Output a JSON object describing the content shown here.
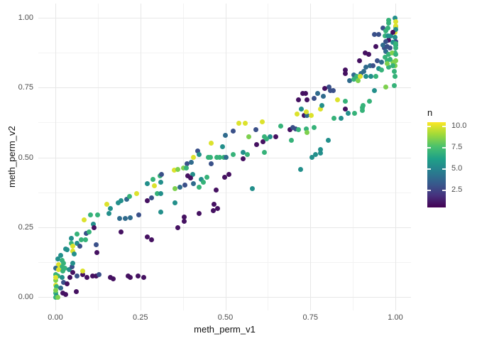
{
  "axes": {
    "x": {
      "title": "meth_perm_v1",
      "ticks": [
        0,
        0.25,
        0.5,
        0.75,
        1
      ],
      "tick_labels": [
        "0.00",
        "0.25",
        "0.50",
        "0.75",
        "1.00"
      ],
      "minor_ticks": [
        0.125,
        0.375,
        0.625,
        0.875
      ],
      "range": [
        0,
        1
      ]
    },
    "y": {
      "title": "meth_perm_v2",
      "ticks": [
        0,
        0.25,
        0.5,
        0.75,
        1
      ],
      "tick_labels": [
        "0.00",
        "0.25",
        "0.50",
        "0.75",
        "1.00"
      ],
      "minor_ticks": [
        0.125,
        0.375,
        0.625,
        0.875
      ],
      "range": [
        0,
        1
      ]
    }
  },
  "legend": {
    "title": "n",
    "ticks": [
      10.0,
      7.5,
      5.0,
      2.5
    ],
    "tick_labels": [
      "10.0",
      "7.5",
      "5.0",
      "2.5"
    ],
    "domain": [
      0.55,
      10.5
    ]
  },
  "colors": {
    "viridis_stops": [
      "#440154",
      "#46327e",
      "#365c8d",
      "#277f8e",
      "#1fa187",
      "#4ac16d",
      "#a0da39",
      "#fde725"
    ],
    "grid_major": "#e7e7e7",
    "grid_minor": "#f3f3f3",
    "tick_text": "#4d4d4d"
  },
  "chart_data": {
    "type": "scatter",
    "title": "",
    "xlabel": "meth_perm_v1",
    "ylabel": "meth_perm_v2",
    "color_variable": "n",
    "color_scale": "viridis",
    "xlim": [
      0,
      1
    ],
    "ylim": [
      0,
      1
    ],
    "grid": true,
    "legend_position": "right",
    "points": [
      [
        0.046,
        0.191,
        7
      ],
      [
        0.063,
        0.193,
        5.5
      ],
      [
        0.071,
        0.181,
        3
      ],
      [
        0.031,
        0.173,
        5.5
      ],
      [
        0.052,
        0.165,
        10
      ],
      [
        0.056,
        0.153,
        5.5
      ],
      [
        0.119,
        0.186,
        3
      ],
      [
        0.123,
        0.16,
        1
      ],
      [
        0.008,
        0.135,
        5.5
      ],
      [
        0.019,
        0.13,
        7
      ],
      [
        0.025,
        0.122,
        7
      ],
      [
        0.01,
        0.115,
        10
      ],
      [
        0.019,
        0.109,
        7
      ],
      [
        0.029,
        0.104,
        7
      ],
      [
        0.0,
        0.102,
        4
      ],
      [
        0.01,
        0.097,
        10
      ],
      [
        0.021,
        0.092,
        7
      ],
      [
        0.04,
        0.097,
        5.5
      ],
      [
        0.05,
        0.109,
        3
      ],
      [
        0.052,
        0.122,
        5.5
      ],
      [
        0.052,
        0.089,
        1
      ],
      [
        0.042,
        0.071,
        1
      ],
      [
        0.0,
        0.079,
        7
      ],
      [
        0.008,
        0.076,
        7
      ],
      [
        0.019,
        0.071,
        5.5
      ],
      [
        0.063,
        0.076,
        3
      ],
      [
        0.081,
        0.079,
        1
      ],
      [
        0.092,
        0.071,
        1
      ],
      [
        0.109,
        0.076,
        1
      ],
      [
        0.119,
        0.076,
        1
      ],
      [
        0.025,
        0.053,
        3
      ],
      [
        0.035,
        0.046,
        1
      ],
      [
        0.0,
        0.041,
        10
      ],
      [
        0.004,
        0.038,
        7
      ],
      [
        0.015,
        0.033,
        4
      ],
      [
        0.061,
        0.02,
        1
      ],
      [
        0.021,
        0.013,
        1
      ],
      [
        0.031,
        0.01,
        1
      ],
      [
        0.0,
        0.015,
        7
      ],
      [
        0.004,
        0.003,
        5.5
      ],
      [
        0.0,
        0.0,
        7
      ],
      [
        0.008,
        0.0,
        8.5
      ],
      [
        0.0,
        0.025,
        8.5
      ],
      [
        0.0,
        0.059,
        8.5
      ],
      [
        0.0,
        0.071,
        10
      ],
      [
        0.161,
        0.071,
        1
      ],
      [
        0.171,
        0.066,
        1
      ],
      [
        0.213,
        0.074,
        1
      ],
      [
        0.221,
        0.071,
        1
      ],
      [
        0.244,
        0.076,
        1
      ],
      [
        0.259,
        0.071,
        1
      ],
      [
        0.129,
        0.079,
        3
      ],
      [
        0.081,
        0.092,
        10
      ],
      [
        0.104,
        0.293,
        7
      ],
      [
        0.125,
        0.295,
        7
      ],
      [
        0.157,
        0.3,
        5.5
      ],
      [
        0.084,
        0.275,
        10
      ],
      [
        0.111,
        0.262,
        5.5
      ],
      [
        0.113,
        0.249,
        1
      ],
      [
        0.188,
        0.28,
        4
      ],
      [
        0.205,
        0.28,
        4
      ],
      [
        0.221,
        0.283,
        4
      ],
      [
        0.246,
        0.293,
        3
      ],
      [
        0.309,
        0.305,
        5.5
      ],
      [
        0.194,
        0.232,
        1
      ],
      [
        0.271,
        0.216,
        1
      ],
      [
        0.282,
        0.204,
        1
      ],
      [
        0.09,
        0.229,
        3
      ],
      [
        0.1,
        0.232,
        7
      ],
      [
        0.063,
        0.224,
        7
      ],
      [
        0.046,
        0.211,
        5.5
      ],
      [
        0.077,
        0.206,
        7
      ],
      [
        0.088,
        0.204,
        7
      ],
      [
        0.052,
        0.181,
        10
      ],
      [
        0.035,
        0.168,
        5.5
      ],
      [
        0.015,
        0.148,
        5.5
      ],
      [
        0.271,
        0.407,
        5.5
      ],
      [
        0.288,
        0.42,
        7
      ],
      [
        0.307,
        0.433,
        7
      ],
      [
        0.313,
        0.44,
        3
      ],
      [
        0.309,
        0.41,
        5.5
      ],
      [
        0.292,
        0.397,
        10
      ],
      [
        0.152,
        0.333,
        10
      ],
      [
        0.184,
        0.338,
        5.5
      ],
      [
        0.194,
        0.346,
        5.5
      ],
      [
        0.209,
        0.351,
        4
      ],
      [
        0.219,
        0.361,
        7
      ],
      [
        0.24,
        0.369,
        10
      ],
      [
        0.271,
        0.346,
        1
      ],
      [
        0.282,
        0.356,
        3
      ],
      [
        0.299,
        0.369,
        7
      ],
      [
        0.309,
        0.369,
        5.5
      ],
      [
        0.161,
        0.316,
        5.5
      ],
      [
        0.539,
        0.623,
        10
      ],
      [
        0.559,
        0.621,
        10
      ],
      [
        0.608,
        0.626,
        10
      ],
      [
        0.524,
        0.593,
        3
      ],
      [
        0.501,
        0.578,
        4
      ],
      [
        0.589,
        0.598,
        3
      ],
      [
        0.662,
        0.611,
        7
      ],
      [
        0.691,
        0.598,
        1
      ],
      [
        0.568,
        0.573,
        8.5
      ],
      [
        0.614,
        0.575,
        7
      ],
      [
        0.631,
        0.573,
        5.5
      ],
      [
        0.649,
        0.573,
        1
      ],
      [
        0.591,
        0.547,
        1
      ],
      [
        0.61,
        0.557,
        1
      ],
      [
        0.622,
        0.565,
        7
      ],
      [
        0.695,
        0.56,
        7
      ],
      [
        0.459,
        0.55,
        10
      ],
      [
        0.491,
        0.537,
        5.5
      ],
      [
        0.418,
        0.524,
        3
      ],
      [
        0.407,
        0.501,
        10
      ],
      [
        0.422,
        0.511,
        5.5
      ],
      [
        0.449,
        0.501,
        7
      ],
      [
        0.457,
        0.501,
        7
      ],
      [
        0.474,
        0.499,
        7
      ],
      [
        0.484,
        0.499,
        7
      ],
      [
        0.495,
        0.499,
        7
      ],
      [
        0.503,
        0.501,
        4
      ],
      [
        0.524,
        0.509,
        7
      ],
      [
        0.553,
        0.517,
        5.5
      ],
      [
        0.564,
        0.511,
        7
      ],
      [
        0.553,
        0.496,
        1
      ],
      [
        0.614,
        0.519,
        7
      ],
      [
        0.388,
        0.478,
        3
      ],
      [
        0.399,
        0.481,
        4
      ],
      [
        0.459,
        0.478,
        3
      ],
      [
        0.349,
        0.455,
        10
      ],
      [
        0.361,
        0.458,
        8.5
      ],
      [
        0.376,
        0.461,
        8.5
      ],
      [
        0.386,
        0.463,
        7
      ],
      [
        0.405,
        0.44,
        5.5
      ],
      [
        0.39,
        0.433,
        1
      ],
      [
        0.397,
        0.427,
        1
      ],
      [
        0.428,
        0.42,
        5.5
      ],
      [
        0.445,
        0.43,
        7
      ],
      [
        0.497,
        0.43,
        1
      ],
      [
        0.511,
        0.438,
        1
      ],
      [
        0.351,
        0.389,
        8.5
      ],
      [
        0.367,
        0.392,
        4
      ],
      [
        0.38,
        0.402,
        3
      ],
      [
        0.407,
        0.407,
        4
      ],
      [
        0.422,
        0.394,
        7
      ],
      [
        0.436,
        0.412,
        7
      ],
      [
        0.472,
        0.384,
        1
      ],
      [
        0.58,
        0.389,
        5.5
      ],
      [
        0.351,
        0.338,
        5.5
      ],
      [
        0.466,
        0.331,
        1
      ],
      [
        0.476,
        0.318,
        1
      ],
      [
        0.361,
        0.249,
        1
      ],
      [
        0.378,
        0.285,
        1
      ],
      [
        0.378,
        0.272,
        1
      ],
      [
        0.422,
        0.298,
        1
      ],
      [
        0.464,
        0.31,
        1
      ],
      [
        0.71,
        0.656,
        10
      ],
      [
        0.731,
        0.651,
        1
      ],
      [
        0.741,
        0.649,
        4
      ],
      [
        0.752,
        0.649,
        10
      ],
      [
        0.737,
        0.662,
        10
      ],
      [
        0.779,
        0.674,
        10
      ],
      [
        0.724,
        0.674,
        5.5
      ],
      [
        0.852,
        0.674,
        1
      ],
      [
        0.862,
        0.659,
        5.5
      ],
      [
        0.881,
        0.659,
        7
      ],
      [
        0.902,
        0.669,
        7
      ],
      [
        0.902,
        0.677,
        7
      ],
      [
        0.82,
        0.639,
        7
      ],
      [
        0.841,
        0.641,
        5.5
      ],
      [
        0.699,
        0.608,
        3
      ],
      [
        0.706,
        0.601,
        3
      ],
      [
        0.716,
        0.598,
        7
      ],
      [
        0.739,
        0.601,
        7
      ],
      [
        0.741,
        0.588,
        8.5
      ],
      [
        0.76,
        0.608,
        7
      ],
      [
        0.802,
        0.56,
        5.5
      ],
      [
        0.779,
        0.527,
        5.5
      ],
      [
        0.779,
        0.514,
        5.5
      ],
      [
        0.766,
        0.509,
        5.5
      ],
      [
        0.754,
        0.499,
        5.5
      ],
      [
        0.722,
        0.458,
        5.5
      ],
      [
        0.998,
        1.0,
        5.5
      ],
      [
        1.0,
        0.987,
        10
      ],
      [
        0.981,
        0.98,
        7
      ],
      [
        1.0,
        0.967,
        5.5
      ],
      [
        0.964,
        0.962,
        3
      ],
      [
        0.998,
        0.949,
        10
      ],
      [
        0.939,
        0.941,
        3
      ],
      [
        0.95,
        0.941,
        3
      ],
      [
        0.987,
        0.936,
        5.5
      ],
      [
        0.998,
        0.931,
        5.5
      ],
      [
        0.981,
        0.919,
        1
      ],
      [
        1.0,
        0.916,
        3
      ],
      [
        1.0,
        0.903,
        5.5
      ],
      [
        0.967,
        0.893,
        3
      ],
      [
        0.943,
        0.898,
        1
      ],
      [
        0.912,
        0.875,
        1
      ],
      [
        0.921,
        0.87,
        1
      ],
      [
        0.971,
        0.88,
        4
      ],
      [
        0.981,
        0.868,
        7
      ],
      [
        0.998,
        0.873,
        7
      ],
      [
        0.894,
        0.847,
        1
      ],
      [
        0.946,
        0.847,
        3
      ],
      [
        0.96,
        0.842,
        4
      ],
      [
        0.977,
        0.847,
        7
      ],
      [
        0.992,
        0.842,
        8.5
      ],
      [
        0.998,
        0.827,
        8.5
      ],
      [
        0.981,
        0.822,
        7
      ],
      [
        0.914,
        0.822,
        4
      ],
      [
        0.925,
        0.827,
        4
      ],
      [
        0.935,
        0.827,
        3
      ],
      [
        0.95,
        0.817,
        5.5
      ],
      [
        0.96,
        0.814,
        7
      ],
      [
        0.908,
        0.809,
        4
      ],
      [
        0.898,
        0.801,
        4
      ],
      [
        0.852,
        0.812,
        1
      ],
      [
        0.852,
        0.801,
        1
      ],
      [
        0.877,
        0.796,
        4
      ],
      [
        0.887,
        0.789,
        7
      ],
      [
        0.896,
        0.789,
        10
      ],
      [
        0.914,
        0.789,
        5.5
      ],
      [
        0.929,
        0.789,
        5.5
      ],
      [
        0.943,
        0.791,
        7
      ],
      [
        0.866,
        0.776,
        4
      ],
      [
        0.877,
        0.779,
        7
      ],
      [
        0.891,
        0.776,
        8.5
      ],
      [
        0.998,
        0.789,
        7
      ],
      [
        0.971,
        0.751,
        8.5
      ],
      [
        0.939,
        0.738,
        5.5
      ],
      [
        0.923,
        0.702,
        7
      ],
      [
        0.804,
        0.751,
        3
      ],
      [
        0.793,
        0.746,
        1
      ],
      [
        0.727,
        0.73,
        1
      ],
      [
        0.735,
        0.728,
        1
      ],
      [
        0.772,
        0.728,
        4
      ],
      [
        0.789,
        0.72,
        4
      ],
      [
        0.808,
        0.738,
        3
      ],
      [
        0.818,
        0.738,
        3
      ],
      [
        0.762,
        0.712,
        3
      ],
      [
        0.741,
        0.705,
        1
      ],
      [
        0.829,
        0.705,
        10
      ],
      [
        0.852,
        0.7,
        7
      ],
      [
        0.716,
        0.705,
        1
      ],
      [
        0.783,
        0.687,
        5.5
      ],
      [
        0.904,
        0.687,
        7
      ],
      [
        0.981,
        0.992,
        7
      ],
      [
        1.0,
        0.97,
        10
      ],
      [
        0.979,
        0.962,
        7
      ],
      [
        1.0,
        0.957,
        5.5
      ],
      [
        0.971,
        0.952,
        7
      ],
      [
        0.971,
        0.916,
        3
      ],
      [
        0.992,
        0.911,
        5.5
      ],
      [
        1.0,
        0.906,
        7
      ],
      [
        0.964,
        0.903,
        4
      ],
      [
        0.985,
        0.893,
        3
      ],
      [
        1.0,
        0.891,
        7
      ],
      [
        0.99,
        0.873,
        8.5
      ],
      [
        1.0,
        0.868,
        7
      ],
      [
        0.969,
        0.86,
        7
      ],
      [
        0.985,
        0.852,
        7
      ],
      [
        1.0,
        0.847,
        8.5
      ],
      [
        0.975,
        0.835,
        8.5
      ],
      [
        0.992,
        0.829,
        7
      ],
      [
        0.996,
        0.809,
        7
      ],
      [
        0.996,
        0.758,
        7
      ],
      [
        0.969,
        0.936,
        7
      ],
      [
        0.979,
        0.934,
        5.5
      ],
      [
        0.992,
        0.947,
        1
      ],
      [
        0.975,
        0.898,
        3
      ]
    ]
  }
}
